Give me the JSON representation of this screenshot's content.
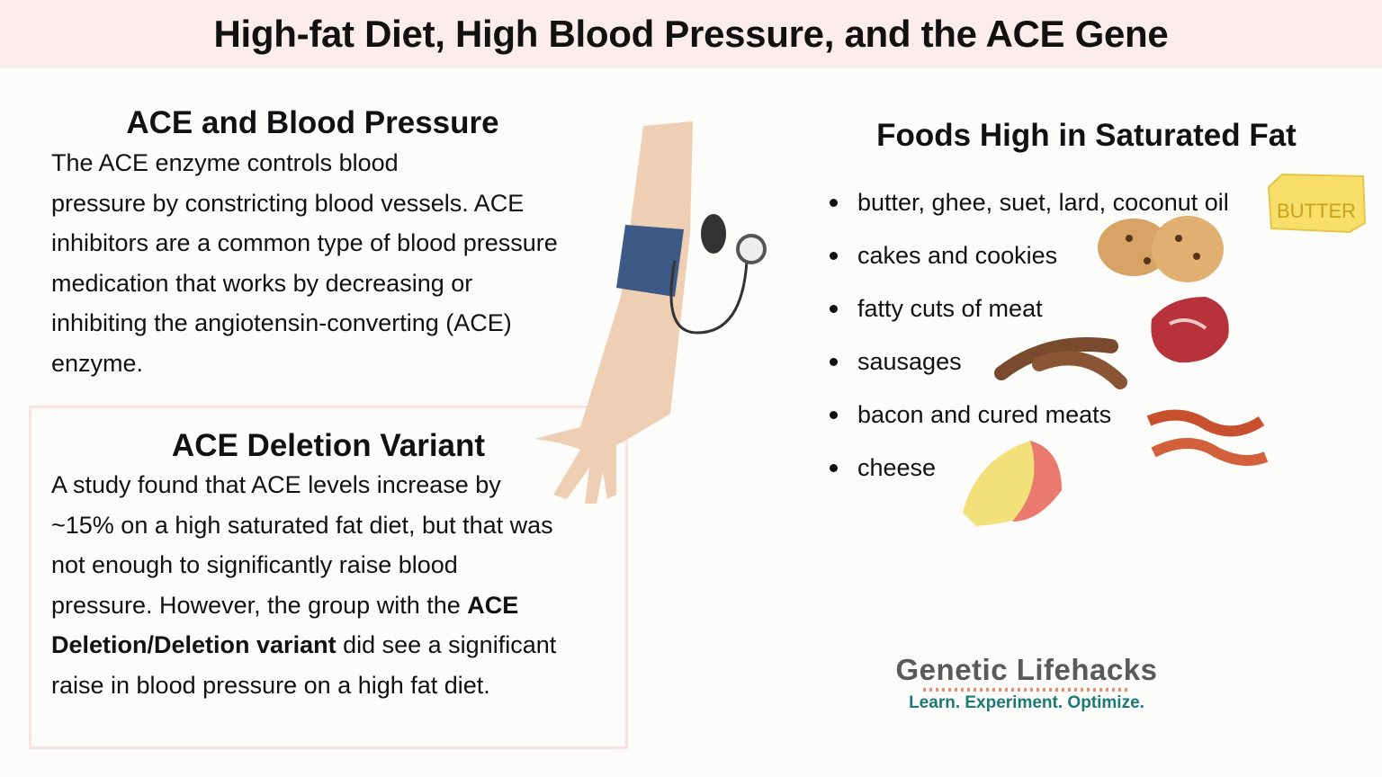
{
  "title": "High-fat Diet, High Blood Pressure, and the ACE Gene",
  "ace_bp": {
    "heading": "ACE and Blood Pressure",
    "lines": [
      "The ACE enzyme controls blood",
      "pressure by constricting blood vessels. ACE",
      "inhibitors are a common type of blood pressure",
      "medication that works by decreasing or",
      "inhibiting the angiotensin-converting (ACE)",
      "enzyme."
    ]
  },
  "deletion": {
    "heading": "ACE Deletion Variant",
    "line1": "A study found that ACE levels increase by",
    "line2": "~15% on a high saturated fat diet, but that was",
    "line3": "not enough to significantly raise blood",
    "line4a": "pressure. However, the group with the ",
    "line4b": "ACE",
    "line5a": "Deletion/Deletion variant",
    "line5b": " did see a significant",
    "line6": "raise in blood pressure on a high fat diet."
  },
  "foods": {
    "heading": "Foods High in Saturated Fat",
    "items": [
      "butter, ghee, suet, lard, coconut oil",
      "cakes and cookies",
      "fatty cuts of meat",
      "sausages",
      "bacon and cured meats",
      "cheese"
    ],
    "butter_label": "BUTTER"
  },
  "logo": {
    "name": "Genetic Lifehacks",
    "tagline": "Learn. Experiment. Optimize."
  }
}
